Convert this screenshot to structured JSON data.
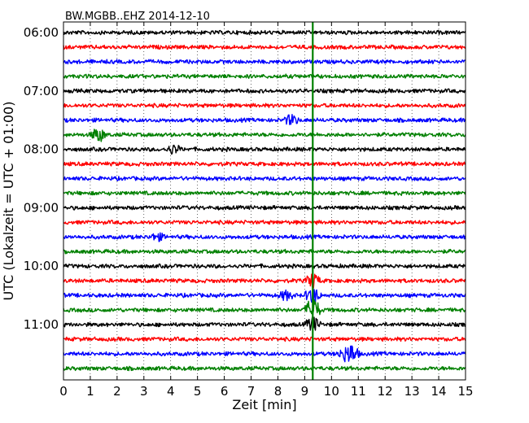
{
  "chart_data": {
    "type": "line",
    "title": "BW.MGBB..EHZ 2014-12-10",
    "xlabel": "Zeit  [min]",
    "ylabel": "UTC (Lokalzeit = UTC + 01:00)",
    "xlim": [
      0,
      15
    ],
    "x_ticks": [
      "0",
      "1",
      "2",
      "3",
      "4",
      "5",
      "6",
      "7",
      "8",
      "9",
      "10",
      "11",
      "12",
      "13",
      "14",
      "15"
    ],
    "y_ticks": [
      "06:00",
      "07:00",
      "08:00",
      "09:00",
      "10:00",
      "11:00"
    ],
    "grid": "vertical dotted",
    "trace_interval_min": 15,
    "trace_colors": [
      "#000000",
      "#ff0000",
      "#0000ff",
      "#008000"
    ],
    "traces": [
      {
        "start": "06:00",
        "color": "#000000"
      },
      {
        "start": "06:15",
        "color": "#ff0000"
      },
      {
        "start": "06:30",
        "color": "#0000ff"
      },
      {
        "start": "06:45",
        "color": "#008000"
      },
      {
        "start": "07:00",
        "color": "#000000"
      },
      {
        "start": "07:15",
        "color": "#ff0000"
      },
      {
        "start": "07:30",
        "color": "#0000ff"
      },
      {
        "start": "07:45",
        "color": "#008000"
      },
      {
        "start": "08:00",
        "color": "#000000"
      },
      {
        "start": "08:15",
        "color": "#ff0000"
      },
      {
        "start": "08:30",
        "color": "#0000ff"
      },
      {
        "start": "08:45",
        "color": "#008000"
      },
      {
        "start": "09:00",
        "color": "#000000"
      },
      {
        "start": "09:15",
        "color": "#ff0000"
      },
      {
        "start": "09:30",
        "color": "#0000ff"
      },
      {
        "start": "09:45",
        "color": "#008000"
      },
      {
        "start": "10:00",
        "color": "#000000"
      },
      {
        "start": "10:15",
        "color": "#ff0000"
      },
      {
        "start": "10:30",
        "color": "#0000ff"
      },
      {
        "start": "10:45",
        "color": "#008000"
      },
      {
        "start": "11:00",
        "color": "#000000"
      },
      {
        "start": "11:15",
        "color": "#ff0000"
      },
      {
        "start": "11:30",
        "color": "#0000ff"
      },
      {
        "start": "11:45",
        "color": "#008000"
      }
    ],
    "events": [
      {
        "trace": 19,
        "minute": 9.3,
        "amplitude": 0.9
      },
      {
        "trace": 18,
        "minute": 9.3,
        "amplitude": 0.6
      },
      {
        "trace": 17,
        "minute": 9.3,
        "amplitude": 0.5
      },
      {
        "trace": 20,
        "minute": 9.3,
        "amplitude": 0.5
      },
      {
        "trace": 22,
        "minute": 10.75,
        "amplitude": 0.6
      },
      {
        "trace": 22,
        "minute": 10.45,
        "amplitude": 0.3
      },
      {
        "trace": 7,
        "minute": 1.3,
        "amplitude": 0.5
      },
      {
        "trace": 6,
        "minute": 8.5,
        "amplitude": 0.35
      },
      {
        "trace": 8,
        "minute": 4.1,
        "amplitude": 0.3
      },
      {
        "trace": 18,
        "minute": 8.3,
        "amplitude": 0.3
      },
      {
        "trace": 14,
        "minute": 3.5,
        "amplitude": 0.25
      }
    ],
    "marker_line": {
      "minute": 9.3,
      "color": "#008000"
    }
  }
}
